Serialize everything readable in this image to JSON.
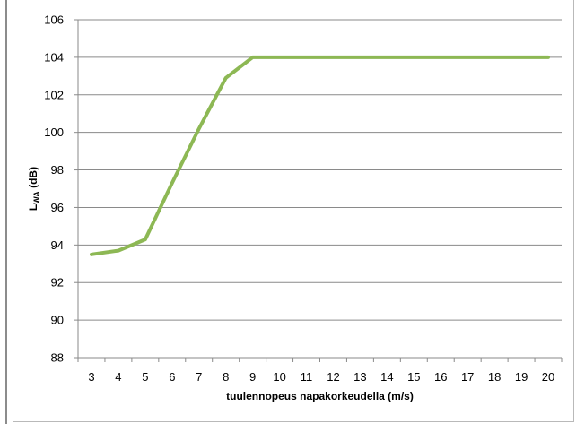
{
  "chart_data": {
    "type": "line",
    "title": "",
    "xlabel": "tuulennopeus napakorkeudella (m/s)",
    "ylabel": "L_WA (dB)",
    "ylabel_main": "L",
    "ylabel_sub": "WA",
    "ylabel_rest": " (dB)",
    "x": [
      3,
      4,
      5,
      6,
      7,
      8,
      9,
      10,
      11,
      12,
      13,
      14,
      15,
      16,
      17,
      18,
      19,
      20
    ],
    "x_tick_labels": [
      "3",
      "4",
      "5",
      "6",
      "7",
      "8",
      "9",
      "10",
      "11",
      "12",
      "13",
      "14",
      "15",
      "16",
      "17",
      "18",
      "19",
      "20"
    ],
    "xlim": [
      2.5,
      20.5
    ],
    "ylim": [
      88,
      106
    ],
    "y_ticks": [
      88,
      90,
      92,
      94,
      96,
      98,
      100,
      102,
      104,
      106
    ],
    "y_tick_labels": [
      "88",
      "90",
      "92",
      "94",
      "96",
      "98",
      "100",
      "102",
      "104",
      "106"
    ],
    "grid": "horizontal",
    "legend": "none",
    "series": [
      {
        "values": [
          93.5,
          93.7,
          94.3,
          97.3,
          100.2,
          102.9,
          104.0,
          104.0,
          104.0,
          104.0,
          104.0,
          104.0,
          104.0,
          104.0,
          104.0,
          104.0,
          104.0,
          104.0
        ]
      }
    ],
    "line_color": "#8db854",
    "grid_color": "#8a8a8a"
  }
}
